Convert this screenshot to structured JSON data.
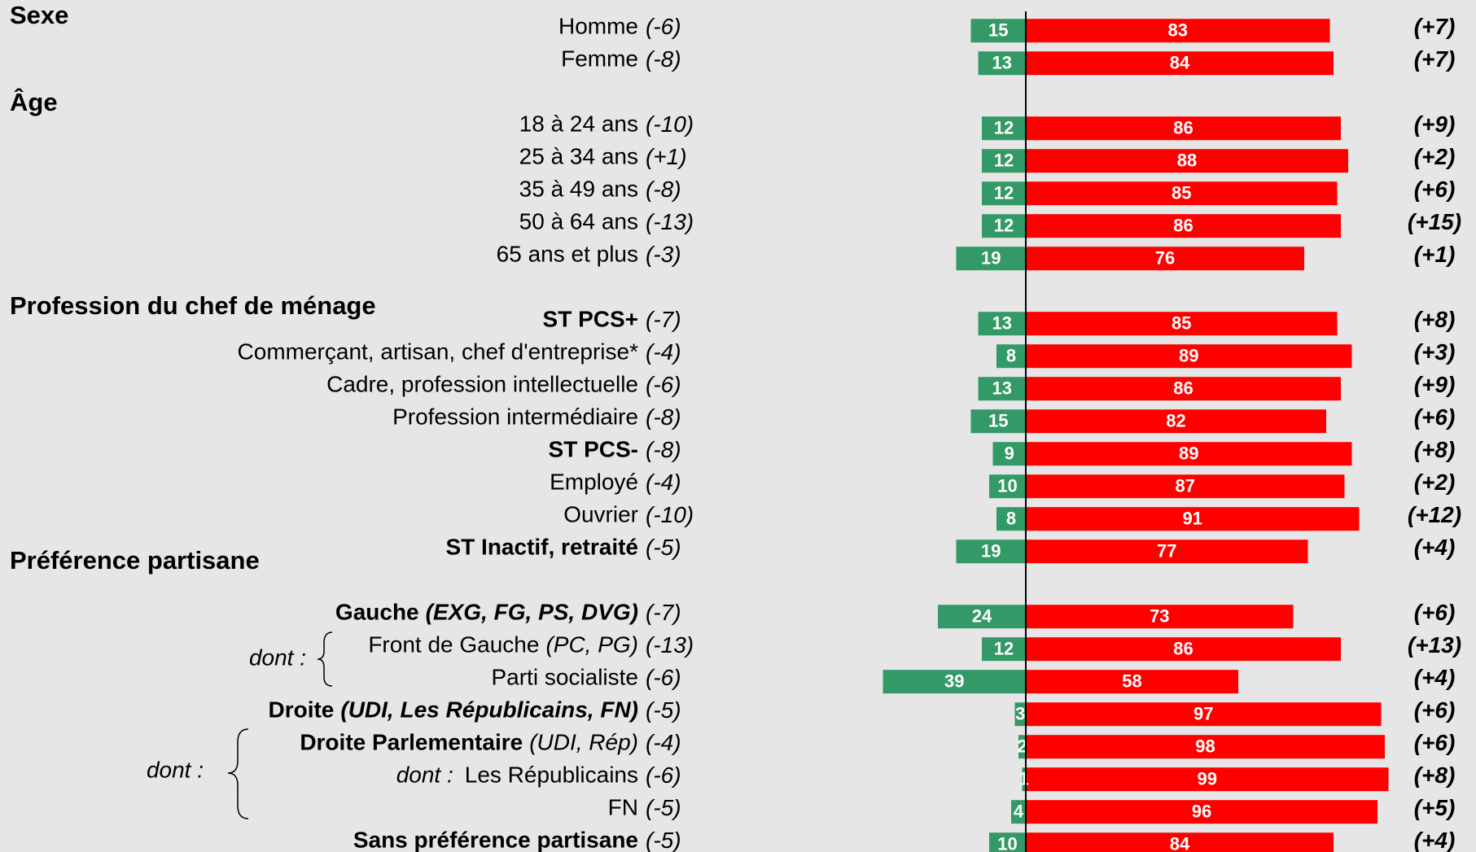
{
  "chart_data": {
    "type": "diverging_bar",
    "left_color": "#339966",
    "right_color": "#ff0000",
    "sections": [
      {
        "title": "Sexe",
        "rows": [
          {
            "label": "Homme",
            "left": 15,
            "right": 83,
            "left_change": "(-6)",
            "right_change": "(+7)"
          },
          {
            "label": "Femme",
            "left": 13,
            "right": 84,
            "left_change": "(-8)",
            "right_change": "(+7)"
          }
        ]
      },
      {
        "title": "Âge",
        "rows": [
          {
            "label": "18 à 24 ans",
            "left": 12,
            "right": 86,
            "left_change": "(-10)",
            "right_change": "(+9)"
          },
          {
            "label": "25 à 34 ans",
            "left": 12,
            "right": 88,
            "left_change": "(+1)",
            "right_change": "(+2)"
          },
          {
            "label": "35 à 49 ans",
            "left": 12,
            "right": 85,
            "left_change": "(-8)",
            "right_change": "(+6)"
          },
          {
            "label": "50 à 64 ans",
            "left": 12,
            "right": 86,
            "left_change": "(-13)",
            "right_change": "(+15)"
          },
          {
            "label": "65 ans et plus",
            "left": 19,
            "right": 76,
            "left_change": "(-3)",
            "right_change": "(+1)"
          }
        ]
      },
      {
        "title": "Profession du chef de ménage",
        "rows": [
          {
            "label": "ST PCS+",
            "bold": true,
            "left": 13,
            "right": 85,
            "left_change": "(-7)",
            "right_change": "(+8)"
          },
          {
            "label": "Commerçant, artisan, chef d'entreprise*",
            "left": 8,
            "right": 89,
            "left_change": "(-4)",
            "right_change": "(+3)"
          },
          {
            "label": "Cadre, profession intellectuelle",
            "left": 13,
            "right": 86,
            "left_change": "(-6)",
            "right_change": "(+9)"
          },
          {
            "label": "Profession intermédiaire",
            "left": 15,
            "right": 82,
            "left_change": "(-8)",
            "right_change": "(+6)"
          },
          {
            "label": "ST PCS-",
            "bold": true,
            "left": 9,
            "right": 89,
            "left_change": "(-8)",
            "right_change": "(+8)"
          },
          {
            "label": "Employé",
            "left": 10,
            "right": 87,
            "left_change": "(-4)",
            "right_change": "(+2)"
          },
          {
            "label": "Ouvrier",
            "left": 8,
            "right": 91,
            "left_change": "(-10)",
            "right_change": "(+12)"
          },
          {
            "label": "ST Inactif, retraité",
            "bold": true,
            "left": 19,
            "right": 77,
            "left_change": "(-5)",
            "right_change": "(+4)"
          }
        ]
      },
      {
        "title": "Préférence partisane",
        "notes": [
          "dont :",
          "dont :"
        ],
        "rows": [
          {
            "label": "Gauche",
            "detail": "(EXG, FG, PS, DVG)",
            "bold": true,
            "detail_bold": true,
            "left": 24,
            "right": 73,
            "left_change": "(-7)",
            "right_change": "(+6)"
          },
          {
            "label": "Front de Gauche",
            "detail": "(PC, PG)",
            "left": 12,
            "right": 86,
            "left_change": "(-13)",
            "right_change": "(+13)"
          },
          {
            "label": "Parti socialiste",
            "left": 39,
            "right": 58,
            "left_change": "(-6)",
            "right_change": "(+4)"
          },
          {
            "label": "Droite",
            "detail": "(UDI, Les Républicains, FN)",
            "bold": true,
            "detail_bold": true,
            "left": 3,
            "right": 97,
            "left_change": "(-5)",
            "right_change": "(+6)"
          },
          {
            "label": "Droite Parlementaire",
            "detail": "(UDI, Rép)",
            "bold": true,
            "left": 2,
            "right": 98,
            "left_change": "(-4)",
            "right_change": "(+6)"
          },
          {
            "prefix": "dont :",
            "label": "Les Républicains",
            "left": 1,
            "right": 99,
            "left_change": "(-6)",
            "right_change": "(+8)"
          },
          {
            "label": "FN",
            "left": 4,
            "right": 96,
            "left_change": "(-5)",
            "right_change": "(+5)"
          },
          {
            "label": "Sans préférence partisane",
            "bold": true,
            "left": 10,
            "right": 84,
            "left_change": "(-5)",
            "right_change": "(+4)"
          }
        ]
      }
    ]
  }
}
